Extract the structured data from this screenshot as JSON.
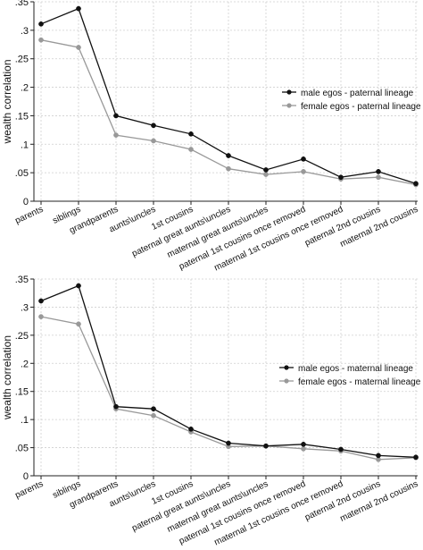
{
  "chart_data": [
    {
      "type": "line",
      "categories": [
        "parents",
        "siblings",
        "grandparents",
        "aunts\\uncles",
        "1st cousins",
        "paternal great aunts\\uncles",
        "maternal great aunts\\uncles",
        "paternal 1st cousins once removed",
        "maternal 1st cousins once removed",
        "paternal 2nd cousins",
        "maternal 2nd cousins"
      ],
      "ylabel": "wealth correlation",
      "ylim": [
        0,
        0.35
      ],
      "yticks": [
        {
          "value": 0,
          "label": "0"
        },
        {
          "value": 0.05,
          "label": ".05"
        },
        {
          "value": 0.1,
          "label": ".1"
        },
        {
          "value": 0.15,
          "label": ".15"
        },
        {
          "value": 0.2,
          "label": ".2"
        },
        {
          "value": 0.25,
          "label": ".25"
        },
        {
          "value": 0.3,
          "label": ".3"
        },
        {
          "value": 0.35,
          "label": ".35"
        }
      ],
      "grid": true,
      "legend_position": "right",
      "series": [
        {
          "name": "male egos - paternal lineage",
          "color": "#111111",
          "values": [
            0.311,
            0.338,
            0.15,
            0.133,
            0.118,
            0.08,
            0.055,
            0.074,
            0.042,
            0.052,
            0.031
          ]
        },
        {
          "name": "female egos - paternal lineage",
          "color": "#999999",
          "values": [
            0.283,
            0.27,
            0.116,
            0.106,
            0.091,
            0.057,
            0.047,
            0.052,
            0.039,
            0.042,
            0.029
          ]
        }
      ]
    },
    {
      "type": "line",
      "categories": [
        "parents",
        "siblings",
        "grandparents",
        "aunts\\uncles",
        "1st cousins",
        "paternal great aunts\\uncles",
        "maternal great aunts\\uncles",
        "paternal 1st cousins once removed",
        "maternal 1st cousins once removed",
        "paternal 2nd cousins",
        "maternal 2nd cousins"
      ],
      "ylabel": "wealth correlation",
      "ylim": [
        0,
        0.35
      ],
      "yticks": [
        {
          "value": 0,
          "label": "0"
        },
        {
          "value": 0.05,
          "label": ".05"
        },
        {
          "value": 0.1,
          "label": ".1"
        },
        {
          "value": 0.15,
          "label": ".15"
        },
        {
          "value": 0.2,
          "label": ".2"
        },
        {
          "value": 0.25,
          "label": ".25"
        },
        {
          "value": 0.3,
          "label": ".3"
        },
        {
          "value": 0.35,
          "label": ".35"
        }
      ],
      "grid": true,
      "legend_position": "right",
      "series": [
        {
          "name": "male egos - maternal lineage",
          "color": "#111111",
          "values": [
            0.311,
            0.338,
            0.123,
            0.119,
            0.083,
            0.058,
            0.053,
            0.056,
            0.047,
            0.036,
            0.033
          ]
        },
        {
          "name": "female egos - maternal lineage",
          "color": "#999999",
          "values": [
            0.283,
            0.27,
            0.119,
            0.107,
            0.078,
            0.052,
            0.053,
            0.048,
            0.044,
            0.029,
            0.032
          ]
        }
      ]
    }
  ]
}
